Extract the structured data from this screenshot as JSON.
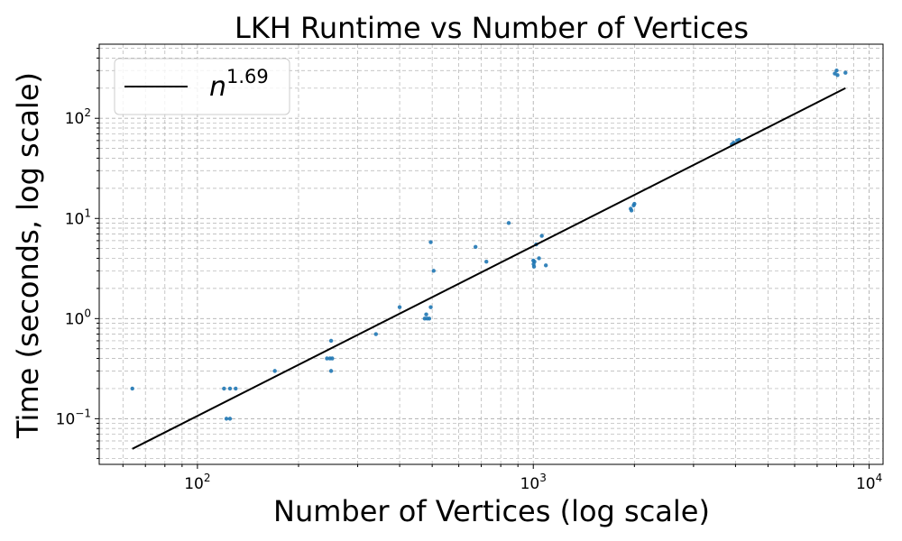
{
  "chart_data": {
    "type": "scatter",
    "title": "LKH Runtime vs Number of Vertices",
    "xlabel": "Number of Vertices (log scale)",
    "ylabel": "Time (seconds, log scale)",
    "xscale": "log",
    "yscale": "log",
    "xlim": [
      51,
      11000
    ],
    "ylim": [
      0.035,
      550
    ],
    "grid": true,
    "grid_style": "dashed, major and minor",
    "legend_position": "top-left",
    "x_ticks": [
      {
        "value": 100,
        "base": "10",
        "exp": "2"
      },
      {
        "value": 1000,
        "base": "10",
        "exp": "3"
      },
      {
        "value": 10000,
        "base": "10",
        "exp": "4"
      }
    ],
    "y_ticks": [
      {
        "value": 0.1,
        "base": "10",
        "exp": "−1"
      },
      {
        "value": 1,
        "base": "10",
        "exp": "0"
      },
      {
        "value": 10,
        "base": "10",
        "exp": "1"
      },
      {
        "value": 100,
        "base": "10",
        "exp": "2"
      }
    ],
    "colors": {
      "points": "#1f77b4",
      "fit": "#000000",
      "grid": "#b0b0b0"
    },
    "fit_line": {
      "label_base": "n",
      "label_exp": "1.69",
      "exponent": 1.69,
      "x_start": 64,
      "x_end": 8500,
      "y_start": 0.05,
      "y_end": 200
    },
    "points": [
      [
        64,
        0.2
      ],
      [
        120,
        0.2
      ],
      [
        125,
        0.2
      ],
      [
        130,
        0.2
      ],
      [
        122,
        0.1
      ],
      [
        125,
        0.1
      ],
      [
        170,
        0.3
      ],
      [
        243,
        0.4
      ],
      [
        248,
        0.4
      ],
      [
        252,
        0.4
      ],
      [
        250,
        0.6
      ],
      [
        250,
        0.3
      ],
      [
        340,
        0.7
      ],
      [
        400,
        1.3
      ],
      [
        475,
        1.0
      ],
      [
        483,
        1.0
      ],
      [
        490,
        1.0
      ],
      [
        480,
        1.1
      ],
      [
        495,
        1.3
      ],
      [
        495,
        5.8
      ],
      [
        505,
        3.0
      ],
      [
        673,
        5.2
      ],
      [
        725,
        3.7
      ],
      [
        845,
        9.0
      ],
      [
        1000,
        3.8
      ],
      [
        1002,
        3.5
      ],
      [
        1005,
        3.3
      ],
      [
        1008,
        3.7
      ],
      [
        1020,
        5.5
      ],
      [
        1040,
        4.0
      ],
      [
        1060,
        6.7
      ],
      [
        1090,
        3.4
      ],
      [
        1950,
        12.5
      ],
      [
        1960,
        12.0
      ],
      [
        1990,
        13.5
      ],
      [
        2000,
        14.0
      ],
      [
        3900,
        55
      ],
      [
        3950,
        57
      ],
      [
        4050,
        60
      ],
      [
        4100,
        61
      ],
      [
        7900,
        280
      ],
      [
        8000,
        300
      ],
      [
        8050,
        270
      ],
      [
        8500,
        285
      ]
    ]
  }
}
